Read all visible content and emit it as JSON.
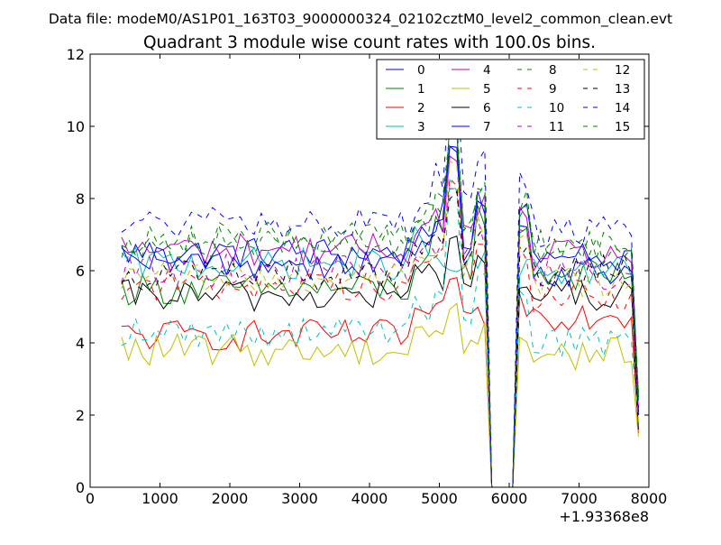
{
  "chart_data": {
    "type": "line",
    "suptitle": "Data file: modeM0/AS1P01_163T03_9000000324_02102cztM0_level2_common_clean.evt",
    "title": "Quadrant 3 module wise count rates with 100.0s bins.",
    "xlabel": "",
    "ylabel": "",
    "xlim": [
      0,
      8000
    ],
    "ylim": [
      0,
      12
    ],
    "x_offset_label": "+1.93368e8",
    "x_ticks": [
      0,
      1000,
      2000,
      3000,
      4000,
      5000,
      6000,
      7000,
      8000
    ],
    "x_tick_labels": [
      "0",
      "1000",
      "2000",
      "3000",
      "4000",
      "5000",
      "6000",
      "7000",
      "8000"
    ],
    "y_ticks": [
      0,
      2,
      4,
      6,
      8,
      10,
      12
    ],
    "y_tick_labels": [
      "0",
      "2",
      "4",
      "6",
      "8",
      "10",
      "12"
    ],
    "legend_position": "top-right",
    "legend_columns": 4,
    "x_start": 450,
    "x_step": 100,
    "n_points": 75,
    "segments": [
      {
        "x": [
          450,
          5750
        ],
        "region": "A"
      },
      {
        "x": [
          5750,
          6050
        ],
        "region": "gap"
      },
      {
        "x": [
          6050,
          7850
        ],
        "region": "B"
      }
    ],
    "features": {
      "rise": {
        "x": [
          4700,
          5200
        ],
        "peak_x": 5250,
        "dip_x": 5450,
        "second_peak_x": 5650
      },
      "drop_x": [
        5700,
        5750
      ],
      "zero_x": [
        5750,
        6050
      ],
      "recover_x": [
        6050,
        6250
      ],
      "final_x": [
        7750,
        7850
      ]
    },
    "series": [
      {
        "name": "0",
        "color": "#0000ff",
        "dash": "solid",
        "base_a": 6.5,
        "base_b": 6.0,
        "peak": 9.3,
        "end": 2.5
      },
      {
        "name": "1",
        "color": "#008000",
        "dash": "solid",
        "base_a": 5.5,
        "base_b": 5.9,
        "peak": 10.0,
        "end": 2.6
      },
      {
        "name": "2",
        "color": "#ff0000",
        "dash": "solid",
        "base_a": 4.2,
        "base_b": 4.8,
        "peak": 5.7,
        "end": 1.5
      },
      {
        "name": "3",
        "color": "#00bfbf",
        "dash": "solid",
        "base_a": 6.2,
        "base_b": 6.0,
        "peak": 6.0,
        "end": 2.4
      },
      {
        "name": "4",
        "color": "#bf00bf",
        "dash": "solid",
        "base_a": 6.6,
        "base_b": 6.4,
        "peak": 9.2,
        "end": 2.0
      },
      {
        "name": "5",
        "color": "#bfbf00",
        "dash": "solid",
        "base_a": 3.8,
        "base_b": 3.7,
        "peak": 5.0,
        "end": 1.4
      },
      {
        "name": "6",
        "color": "#000000",
        "dash": "solid",
        "base_a": 5.3,
        "base_b": 5.3,
        "peak": 7.0,
        "end": 1.6
      },
      {
        "name": "7",
        "color": "#0000ff",
        "dash": "solid",
        "base_a": 6.2,
        "base_b": 6.4,
        "peak": 9.6,
        "end": 2.0
      },
      {
        "name": "8",
        "color": "#008000",
        "dash": "dashed",
        "base_a": 6.8,
        "base_b": 6.5,
        "peak": 10.0,
        "end": 2.6
      },
      {
        "name": "9",
        "color": "#ff0000",
        "dash": "dashed",
        "base_a": 5.6,
        "base_b": 5.3,
        "peak": 8.4,
        "end": 2.2
      },
      {
        "name": "10",
        "color": "#00bfbf",
        "dash": "dashed",
        "base_a": 4.3,
        "base_b": 4.0,
        "peak": 8.4,
        "end": 1.8
      },
      {
        "name": "11",
        "color": "#bf00bf",
        "dash": "dashed",
        "base_a": 6.0,
        "base_b": 5.9,
        "peak": 8.2,
        "end": 2.1
      },
      {
        "name": "12",
        "color": "#bfbf00",
        "dash": "dashed",
        "base_a": 5.8,
        "base_b": 5.7,
        "peak": 9.0,
        "end": 1.8
      },
      {
        "name": "13",
        "color": "#000000",
        "dash": "dashed",
        "base_a": 5.9,
        "base_b": 6.0,
        "peak": 8.0,
        "end": 2.0
      },
      {
        "name": "14",
        "color": "#0000ff",
        "dash": "dashed",
        "base_a": 7.3,
        "base_b": 7.1,
        "peak": 11.2,
        "end": 2.2
      },
      {
        "name": "15",
        "color": "#008000",
        "dash": "dashed",
        "base_a": 6.9,
        "base_b": 6.7,
        "peak": 9.9,
        "end": 2.4
      }
    ]
  }
}
